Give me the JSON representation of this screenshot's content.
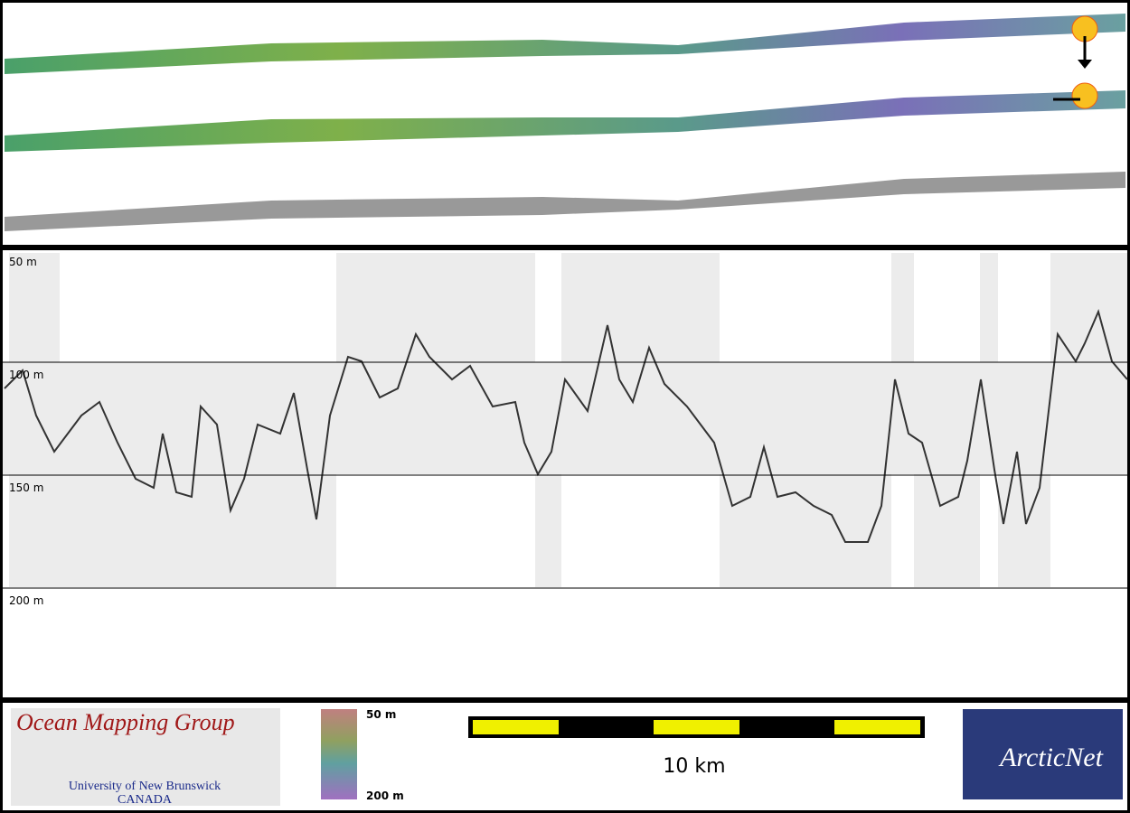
{
  "echogram": {
    "depth_labels": [
      "50 m",
      "100 m",
      "150 m",
      "200 m"
    ]
  },
  "colorbar": {
    "top_label": "50 m",
    "bottom_label": "200 m"
  },
  "scale_bar": {
    "label": "10 km"
  },
  "logos": {
    "omg_title": "Ocean Mapping Group",
    "omg_line1": "University of New Brunswick",
    "omg_line2": "CANADA",
    "arcticnet": "ArcticNet"
  }
}
